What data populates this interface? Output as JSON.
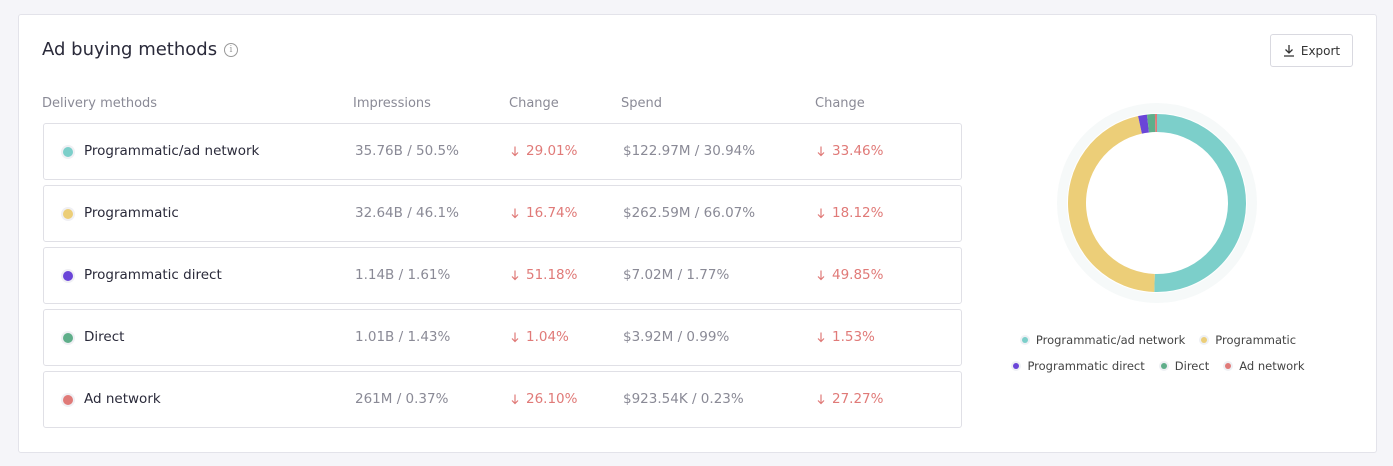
{
  "header": {
    "title": "Ad buying methods",
    "export": "Export"
  },
  "table": {
    "columns": [
      "Delivery methods",
      "Impressions",
      "Change",
      "Spend",
      "Change"
    ],
    "rows": [
      {
        "name": "Programmatic/ad network",
        "impressions": "35.76B / 50.5%",
        "impressions_change": "29.01%",
        "spend": "$122.97M / 30.94%",
        "spend_change": "33.46%"
      },
      {
        "name": "Programmatic",
        "impressions": "32.64B / 46.1%",
        "impressions_change": "16.74%",
        "spend": "$262.59M / 66.07%",
        "spend_change": "18.12%"
      },
      {
        "name": "Programmatic direct",
        "impressions": "1.14B / 1.61%",
        "impressions_change": "51.18%",
        "spend": "$7.02M / 1.77%",
        "spend_change": "49.85%"
      },
      {
        "name": "Direct",
        "impressions": "1.01B / 1.43%",
        "impressions_change": "1.04%",
        "spend": "$3.92M / 0.99%",
        "spend_change": "1.53%"
      },
      {
        "name": "Ad network",
        "impressions": "261M / 0.37%",
        "impressions_change": "26.10%",
        "spend": "$923.54K / 0.23%",
        "spend_change": "27.27%"
      }
    ]
  },
  "chart_data": {
    "type": "donut",
    "categories": [
      "Programmatic/ad network",
      "Programmatic",
      "Programmatic direct",
      "Direct",
      "Ad network"
    ],
    "values": [
      50.5,
      46.1,
      1.61,
      1.43,
      0.37
    ],
    "colors": [
      "#7ccfca",
      "#ecce78",
      "#6a45d8",
      "#5fae8a",
      "#e07a78"
    ]
  }
}
